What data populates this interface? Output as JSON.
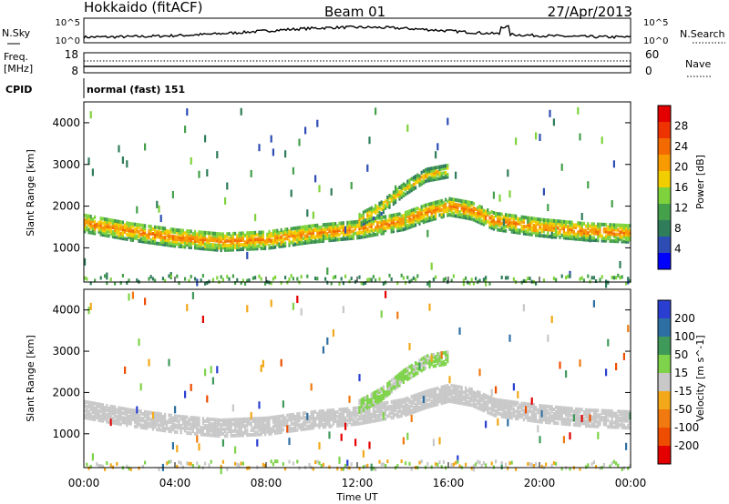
{
  "header": {
    "station": "Hokkaido (fitACF)",
    "beam": "Beam 01",
    "date": "27/Apr/2013"
  },
  "strip_noise": {
    "left_label": "N.Sky",
    "right_label": "N.Search",
    "left_ticks": [
      "10^5",
      "10^0"
    ],
    "right_ticks": [
      "10^5",
      "10^0"
    ]
  },
  "strip_freq": {
    "left_label_1": "Freq.",
    "left_label_2": "[MHz]",
    "right_label": "Nave",
    "left_ticks": [
      "18",
      "8"
    ],
    "right_ticks": [
      "60",
      "0"
    ]
  },
  "strip_cpid": {
    "label": "CPID",
    "text": "normal (fast) 151"
  },
  "chart_data": [
    {
      "type": "heatmap",
      "panel": "power",
      "ylabel": "Slant Range [km]",
      "ylim": [
        180,
        4500
      ],
      "yticks": [
        1000,
        2000,
        3000,
        4000
      ],
      "xlim": [
        0,
        24
      ],
      "colorbar": {
        "label": "Power [dB]",
        "range": [
          0,
          32
        ],
        "ticks": [
          4,
          8,
          12,
          16,
          20,
          24,
          28
        ],
        "colors": [
          "#0000ff",
          "#2d4db4",
          "#2f7d5a",
          "#44a04a",
          "#7ed33c",
          "#f2ce00",
          "#f79b00",
          "#f36a00",
          "#ee3300",
          "#e40000"
        ]
      },
      "bands": [
        {
          "name": "main",
          "points": [
            [
              0,
              1650
            ],
            [
              2,
              1450
            ],
            [
              4,
              1300
            ],
            [
              6,
              1200
            ],
            [
              8,
              1250
            ],
            [
              10,
              1400
            ],
            [
              12,
              1500
            ],
            [
              14,
              1700
            ],
            [
              15,
              1900
            ],
            [
              16,
              2050
            ],
            [
              17,
              1950
            ],
            [
              18,
              1700
            ],
            [
              20,
              1550
            ],
            [
              22,
              1450
            ],
            [
              24,
              1400
            ]
          ],
          "width": 430,
          "level": 24
        },
        {
          "name": "upper",
          "points": [
            [
              12,
              1700
            ],
            [
              13,
              2000
            ],
            [
              14,
              2450
            ],
            [
              15,
              2800
            ],
            [
              16,
              2900
            ]
          ],
          "width": 300,
          "level": 20
        }
      ]
    },
    {
      "type": "heatmap",
      "panel": "velocity",
      "ylabel": "Slant Range [km]",
      "ylim": [
        180,
        4500
      ],
      "yticks": [
        1000,
        2000,
        3000,
        4000
      ],
      "xlim": [
        0,
        24
      ],
      "xticks": [
        "00:00",
        "04:00",
        "08:00",
        "12:00",
        "16:00",
        "20:00",
        "00:00"
      ],
      "xlabel": "Time UT",
      "colorbar": {
        "label": "Velocity [m s^-1]",
        "ticks": [
          "200",
          "100",
          "50",
          "15",
          "-15",
          "-50",
          "-100",
          "-200"
        ],
        "colors": [
          "#2a3fd1",
          "#2e6fa3",
          "#3f9a5a",
          "#7ed34a",
          "#c8c8c8",
          "#f2a818",
          "#f07a10",
          "#ee4d00",
          "#e40000"
        ]
      },
      "bands": [
        {
          "name": "main",
          "points": [
            [
              0,
              1650
            ],
            [
              2,
              1450
            ],
            [
              4,
              1300
            ],
            [
              6,
              1200
            ],
            [
              8,
              1250
            ],
            [
              10,
              1400
            ],
            [
              12,
              1500
            ],
            [
              14,
              1700
            ],
            [
              15,
              1900
            ],
            [
              16,
              2050
            ],
            [
              17,
              1950
            ],
            [
              18,
              1700
            ],
            [
              20,
              1550
            ],
            [
              22,
              1450
            ],
            [
              24,
              1400
            ]
          ],
          "width": 430,
          "velocity": 0
        },
        {
          "name": "upper",
          "points": [
            [
              12,
              1700
            ],
            [
              13,
              2000
            ],
            [
              14,
              2450
            ],
            [
              15,
              2800
            ],
            [
              16,
              2900
            ]
          ],
          "width": 300,
          "velocity": 40
        }
      ]
    }
  ]
}
